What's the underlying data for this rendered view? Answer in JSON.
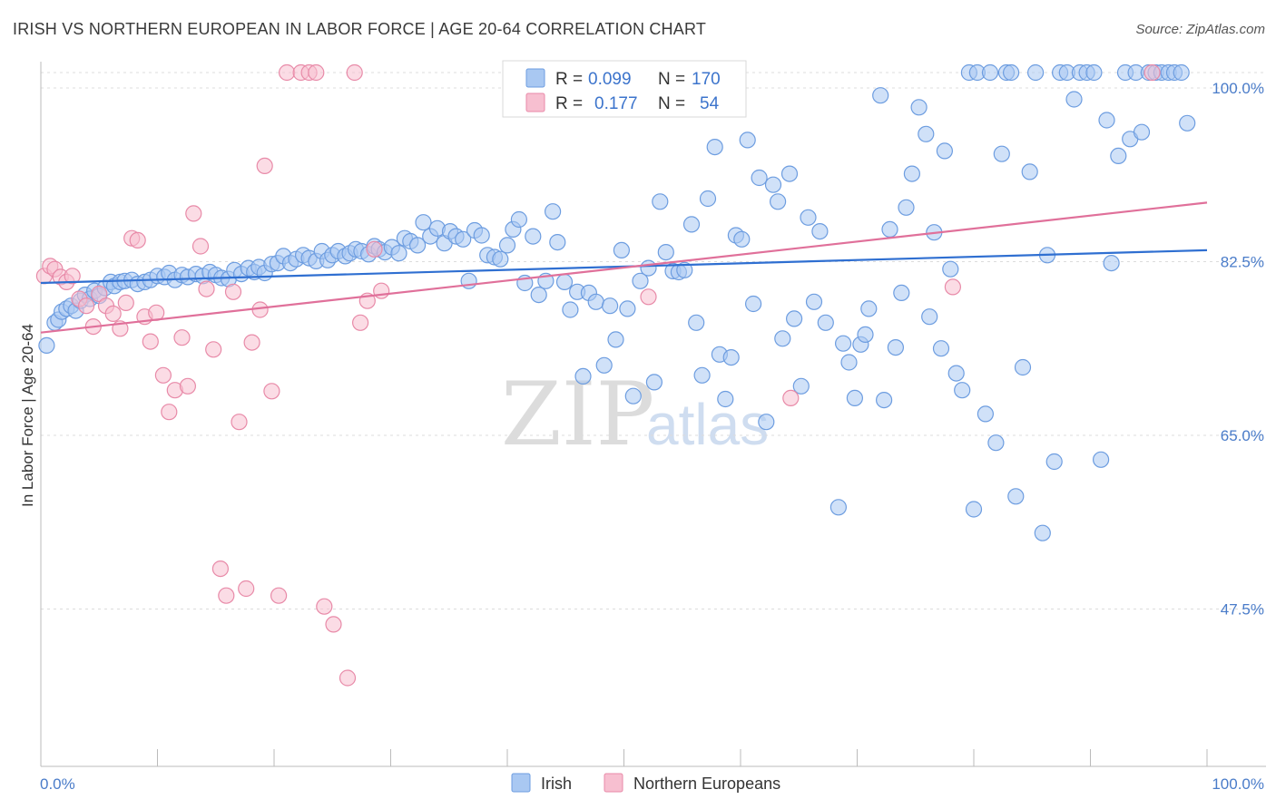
{
  "header": {
    "title": "IRISH VS NORTHERN EUROPEAN IN LABOR FORCE | AGE 20-64 CORRELATION CHART",
    "source": "Source: ZipAtlas.com"
  },
  "watermark": {
    "zip": "ZIP",
    "atlas": "atlas"
  },
  "legend_top": {
    "rows": [
      {
        "r_label": "R =",
        "r_value": "0.099",
        "n_label": "N =",
        "n_value": "170",
        "color": "#a9c8f2",
        "stroke": "#6d9de0"
      },
      {
        "r_label": "R =",
        "r_value": "0.177",
        "n_label": "N =",
        "n_value": "54",
        "color": "#f7bfd0",
        "stroke": "#e88aa8"
      }
    ]
  },
  "legend_bottom": {
    "items": [
      {
        "label": "Irish",
        "color": "#a9c8f2",
        "stroke": "#6d9de0"
      },
      {
        "label": "Northern Europeans",
        "color": "#f7bfd0",
        "stroke": "#e88aa8"
      }
    ]
  },
  "chart_data": {
    "type": "scatter",
    "title": "IRISH VS NORTHERN EUROPEAN IN LABOR FORCE | AGE 20-64 CORRELATION CHART",
    "xlabel": "",
    "ylabel": "In Labor Force | Age 20-64",
    "xlim": [
      0,
      100
    ],
    "ylim": [
      30,
      100
    ],
    "x_tick_labels": [
      "0.0%",
      "100.0%"
    ],
    "y_ticks": [
      47.5,
      65.0,
      82.5,
      100.0
    ],
    "y_tick_labels": [
      "47.5%",
      "65.0%",
      "82.5%",
      "100.0%"
    ],
    "grid": "horizontal dashed",
    "legend_position": "top-center",
    "series": [
      {
        "name": "Irish",
        "color": "#6d9de0",
        "fill": "#a9c8f2",
        "trend": {
          "x": [
            0,
            100
          ],
          "y": [
            78.8,
            82.1
          ]
        },
        "points": [
          [
            0.5,
            72.5
          ],
          [
            1.2,
            74.8
          ],
          [
            1.5,
            75.1
          ],
          [
            1.8,
            75.9
          ],
          [
            2.2,
            76.2
          ],
          [
            2.6,
            76.5
          ],
          [
            3.0,
            76.0
          ],
          [
            3.4,
            77.0
          ],
          [
            3.8,
            77.6
          ],
          [
            4.2,
            77.2
          ],
          [
            4.6,
            78.0
          ],
          [
            5.0,
            77.5
          ],
          [
            5.5,
            78.3
          ],
          [
            6.0,
            78.9
          ],
          [
            6.3,
            78.5
          ],
          [
            6.8,
            78.9
          ],
          [
            7.2,
            79.0
          ],
          [
            7.8,
            79.1
          ],
          [
            8.3,
            78.7
          ],
          [
            8.9,
            78.9
          ],
          [
            9.4,
            79.1
          ],
          [
            10.0,
            79.5
          ],
          [
            10.6,
            79.4
          ],
          [
            11.0,
            79.8
          ],
          [
            11.5,
            79.1
          ],
          [
            12.1,
            79.6
          ],
          [
            12.6,
            79.4
          ],
          [
            13.3,
            79.7
          ],
          [
            13.9,
            79.5
          ],
          [
            14.5,
            79.9
          ],
          [
            15.0,
            79.6
          ],
          [
            15.5,
            79.3
          ],
          [
            16.1,
            79.2
          ],
          [
            16.6,
            80.1
          ],
          [
            17.2,
            79.7
          ],
          [
            17.8,
            80.3
          ],
          [
            18.3,
            79.9
          ],
          [
            18.7,
            80.4
          ],
          [
            19.2,
            79.8
          ],
          [
            19.8,
            80.7
          ],
          [
            20.3,
            80.8
          ],
          [
            20.8,
            81.5
          ],
          [
            21.4,
            80.8
          ],
          [
            21.9,
            81.2
          ],
          [
            22.5,
            81.6
          ],
          [
            23.0,
            81.3
          ],
          [
            23.6,
            81.0
          ],
          [
            24.1,
            82.0
          ],
          [
            24.6,
            81.1
          ],
          [
            25.0,
            81.6
          ],
          [
            25.5,
            82.0
          ],
          [
            26.1,
            81.5
          ],
          [
            26.5,
            81.8
          ],
          [
            27.0,
            82.2
          ],
          [
            27.5,
            82.0
          ],
          [
            28.1,
            81.7
          ],
          [
            28.6,
            82.5
          ],
          [
            29.0,
            82.2
          ],
          [
            29.5,
            81.9
          ],
          [
            30.1,
            82.4
          ],
          [
            30.7,
            81.8
          ],
          [
            31.2,
            83.3
          ],
          [
            31.7,
            83.0
          ],
          [
            32.3,
            82.6
          ],
          [
            32.8,
            84.9
          ],
          [
            33.4,
            83.5
          ],
          [
            34.0,
            84.3
          ],
          [
            34.6,
            82.8
          ],
          [
            35.1,
            84.0
          ],
          [
            35.6,
            83.5
          ],
          [
            36.2,
            83.2
          ],
          [
            36.7,
            79.0
          ],
          [
            37.2,
            84.1
          ],
          [
            37.8,
            83.6
          ],
          [
            38.3,
            81.6
          ],
          [
            38.9,
            81.4
          ],
          [
            39.4,
            81.2
          ],
          [
            40.0,
            82.6
          ],
          [
            40.5,
            84.2
          ],
          [
            41.0,
            85.2
          ],
          [
            41.5,
            78.8
          ],
          [
            42.2,
            83.5
          ],
          [
            42.7,
            77.6
          ],
          [
            43.3,
            79.0
          ],
          [
            43.9,
            86.0
          ],
          [
            44.3,
            82.9
          ],
          [
            44.9,
            78.9
          ],
          [
            45.4,
            76.1
          ],
          [
            46.0,
            77.9
          ],
          [
            46.5,
            69.4
          ],
          [
            47.0,
            77.8
          ],
          [
            47.6,
            76.9
          ],
          [
            48.3,
            70.5
          ],
          [
            48.8,
            76.5
          ],
          [
            49.3,
            73.1
          ],
          [
            49.8,
            82.1
          ],
          [
            50.3,
            76.2
          ],
          [
            50.8,
            67.4
          ],
          [
            51.4,
            79.0
          ],
          [
            52.1,
            80.3
          ],
          [
            52.6,
            68.8
          ],
          [
            53.1,
            87.0
          ],
          [
            53.6,
            81.9
          ],
          [
            54.2,
            80.0
          ],
          [
            54.7,
            79.9
          ],
          [
            55.2,
            80.1
          ],
          [
            55.8,
            84.7
          ],
          [
            56.2,
            74.8
          ],
          [
            56.7,
            69.5
          ],
          [
            57.2,
            87.3
          ],
          [
            57.8,
            92.5
          ],
          [
            58.2,
            71.6
          ],
          [
            58.7,
            67.1
          ],
          [
            59.2,
            71.3
          ],
          [
            59.6,
            83.6
          ],
          [
            60.1,
            83.2
          ],
          [
            60.6,
            93.2
          ],
          [
            61.1,
            76.7
          ],
          [
            61.6,
            89.4
          ],
          [
            62.2,
            64.8
          ],
          [
            62.8,
            88.7
          ],
          [
            63.2,
            87.0
          ],
          [
            63.6,
            73.2
          ],
          [
            64.2,
            89.8
          ],
          [
            64.6,
            75.2
          ],
          [
            65.2,
            68.4
          ],
          [
            65.8,
            85.4
          ],
          [
            66.3,
            76.9
          ],
          [
            66.8,
            84.0
          ],
          [
            67.3,
            74.8
          ],
          [
            68.4,
            56.2
          ],
          [
            68.8,
            72.7
          ],
          [
            69.3,
            70.8
          ],
          [
            69.8,
            67.2
          ],
          [
            70.3,
            72.6
          ],
          [
            70.7,
            73.6
          ],
          [
            71.0,
            76.2
          ],
          [
            72.0,
            97.7
          ],
          [
            72.3,
            67.0
          ],
          [
            72.8,
            84.2
          ],
          [
            73.3,
            72.3
          ],
          [
            73.8,
            77.8
          ],
          [
            74.2,
            86.4
          ],
          [
            74.7,
            89.8
          ],
          [
            75.3,
            96.5
          ],
          [
            75.9,
            93.8
          ],
          [
            76.2,
            75.4
          ],
          [
            76.6,
            83.9
          ],
          [
            77.2,
            72.2
          ],
          [
            77.5,
            92.1
          ],
          [
            78.0,
            80.2
          ],
          [
            78.5,
            69.7
          ],
          [
            79.0,
            68.0
          ],
          [
            79.6,
            100.0
          ],
          [
            80.0,
            56.0
          ],
          [
            80.3,
            100.0
          ],
          [
            81.0,
            65.6
          ],
          [
            81.4,
            100.0
          ],
          [
            81.9,
            62.7
          ],
          [
            82.4,
            91.8
          ],
          [
            82.8,
            100.0
          ],
          [
            83.2,
            100.0
          ],
          [
            83.6,
            57.3
          ],
          [
            84.2,
            70.3
          ],
          [
            84.8,
            90.0
          ],
          [
            85.3,
            100.0
          ],
          [
            85.9,
            53.6
          ],
          [
            86.3,
            81.6
          ],
          [
            86.9,
            60.8
          ],
          [
            87.4,
            100.0
          ],
          [
            88.0,
            100.0
          ],
          [
            88.6,
            97.3
          ],
          [
            89.1,
            100.0
          ],
          [
            89.7,
            100.0
          ],
          [
            90.3,
            100.0
          ],
          [
            90.9,
            61.0
          ],
          [
            91.4,
            95.2
          ],
          [
            91.8,
            80.8
          ],
          [
            92.4,
            91.6
          ],
          [
            93.0,
            100.0
          ],
          [
            93.4,
            93.3
          ],
          [
            93.9,
            100.0
          ],
          [
            94.4,
            94.0
          ],
          [
            95.0,
            100.0
          ],
          [
            95.6,
            100.0
          ],
          [
            96.1,
            100.0
          ],
          [
            96.7,
            100.0
          ],
          [
            97.2,
            100.0
          ],
          [
            97.8,
            100.0
          ],
          [
            98.3,
            94.9
          ]
        ]
      },
      {
        "name": "Northern Europeans",
        "color": "#e88aa8",
        "fill": "#f7bfd0",
        "trend": {
          "x": [
            0,
            100
          ],
          "y": [
            73.8,
            86.9
          ]
        },
        "points": [
          [
            0.3,
            79.5
          ],
          [
            0.8,
            80.5
          ],
          [
            1.2,
            80.2
          ],
          [
            1.7,
            79.4
          ],
          [
            2.2,
            78.9
          ],
          [
            2.7,
            79.5
          ],
          [
            3.3,
            77.2
          ],
          [
            3.9,
            76.5
          ],
          [
            4.5,
            74.4
          ],
          [
            5.0,
            77.7
          ],
          [
            5.6,
            76.5
          ],
          [
            6.2,
            75.7
          ],
          [
            6.8,
            74.2
          ],
          [
            7.3,
            76.8
          ],
          [
            7.8,
            83.3
          ],
          [
            8.3,
            83.1
          ],
          [
            8.9,
            75.4
          ],
          [
            9.4,
            72.9
          ],
          [
            9.9,
            75.8
          ],
          [
            10.5,
            69.5
          ],
          [
            11.0,
            65.8
          ],
          [
            11.5,
            68.0
          ],
          [
            12.1,
            73.3
          ],
          [
            12.6,
            68.4
          ],
          [
            13.1,
            85.8
          ],
          [
            13.7,
            82.5
          ],
          [
            14.2,
            78.2
          ],
          [
            14.8,
            72.1
          ],
          [
            15.4,
            50.0
          ],
          [
            15.9,
            47.3
          ],
          [
            16.5,
            77.9
          ],
          [
            17.0,
            64.8
          ],
          [
            17.6,
            48.0
          ],
          [
            18.1,
            72.8
          ],
          [
            18.8,
            76.1
          ],
          [
            19.2,
            90.6
          ],
          [
            19.8,
            67.9
          ],
          [
            20.4,
            47.3
          ],
          [
            21.1,
            100.0
          ],
          [
            22.3,
            100.0
          ],
          [
            23.0,
            100.0
          ],
          [
            23.6,
            100.0
          ],
          [
            24.3,
            46.2
          ],
          [
            25.1,
            44.4
          ],
          [
            26.3,
            39.0
          ],
          [
            26.9,
            100.0
          ],
          [
            27.4,
            74.8
          ],
          [
            28.0,
            77.0
          ],
          [
            28.6,
            82.2
          ],
          [
            29.2,
            78.0
          ],
          [
            52.1,
            77.4
          ],
          [
            64.3,
            67.2
          ],
          [
            78.2,
            78.4
          ],
          [
            95.3,
            100.0
          ]
        ]
      }
    ]
  }
}
